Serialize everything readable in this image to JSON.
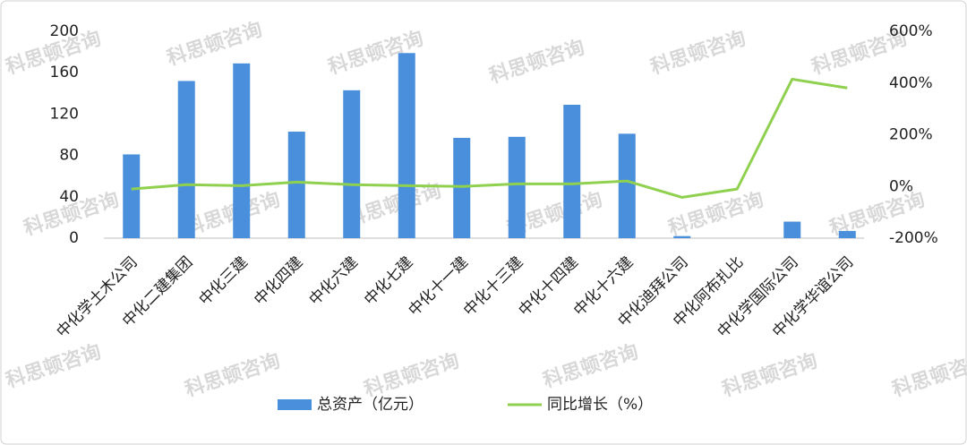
{
  "chart_data": {
    "type": "bar-line",
    "watermark": "科思顿咨询",
    "categories": [
      "中化学土木公司",
      "中化二建集团",
      "中化三建",
      "中化四建",
      "中化六建",
      "中化七建",
      "中化十一建",
      "中化十三建",
      "中化十四建",
      "中化十六建",
      "中化迪拜公司",
      "中化阿布扎比",
      "中化学国际公司",
      "中化学华谊公司"
    ],
    "series": [
      {
        "name": "总资产（亿元）",
        "type": "bar",
        "color": "#4a8fdb",
        "values": [
          81,
          152,
          169,
          103,
          143,
          179,
          97,
          98,
          129,
          101,
          2,
          0,
          16,
          7
        ]
      },
      {
        "name": "同比增长（%）",
        "type": "line",
        "axis": "y2",
        "color": "#8fd14f",
        "values": [
          -10,
          7,
          3,
          17,
          7,
          3,
          0,
          10,
          10,
          21,
          -42,
          -10,
          415,
          381
        ]
      }
    ],
    "ylim": [
      0,
      200
    ],
    "yticks": [
      0,
      40,
      80,
      120,
      160,
      200
    ],
    "y2lim": [
      -200,
      600
    ],
    "y2ticks": [
      {
        "value": -200,
        "label": "-200%"
      },
      {
        "value": 0,
        "label": "0%"
      },
      {
        "value": 200,
        "label": "200%"
      },
      {
        "value": 400,
        "label": "400%"
      },
      {
        "value": 600,
        "label": "600%"
      }
    ],
    "legend": "bottom"
  }
}
